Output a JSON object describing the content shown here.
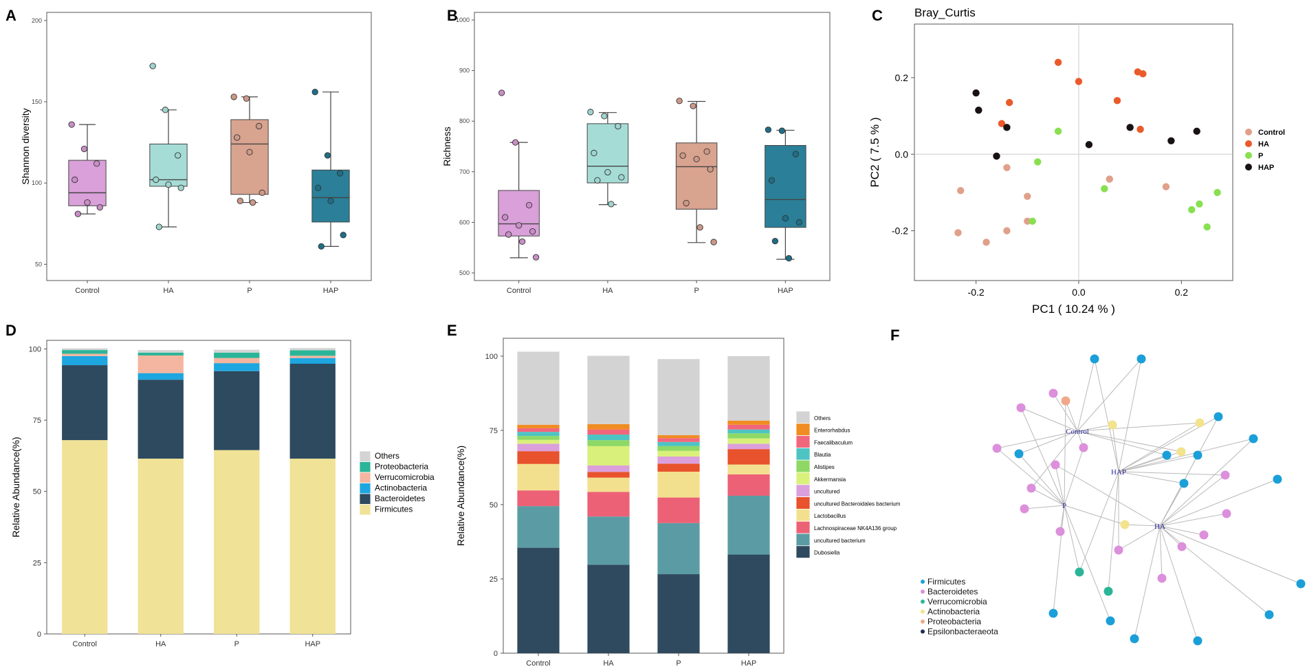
{
  "panels": {
    "A": "A",
    "B": "B",
    "C": "C",
    "D": "D",
    "E": "E",
    "F": "F"
  },
  "colors": {
    "Control": "#d9a0d9",
    "HA": "#a6dcd6",
    "P": "#d8a38f",
    "HAP": "#2b7f98",
    "Control_pt": "#c98ec6",
    "HA_pt": "#9ed4cd",
    "P_pt": "#cc9988",
    "HAP_pt": "#1f6e86"
  },
  "chart_data": [
    {
      "id": "A",
      "type": "box",
      "ylabel": "Shannon diversity",
      "xlabel": "",
      "categories": [
        "Control",
        "HA",
        "P",
        "HAP"
      ],
      "ylim": [
        40,
        205
      ],
      "yticks": [
        50,
        100,
        150,
        200
      ],
      "boxes": [
        {
          "group": "Control",
          "min": 81,
          "q1": 86,
          "median": 94,
          "q3": 114,
          "max": 136
        },
        {
          "group": "HA",
          "min": 73,
          "q1": 98,
          "median": 102,
          "q3": 124,
          "max": 145
        },
        {
          "group": "P",
          "min": 88,
          "q1": 93,
          "median": 124,
          "q3": 139,
          "max": 153
        },
        {
          "group": "HAP",
          "min": 61,
          "q1": 76,
          "median": 91,
          "q3": 108,
          "max": 156
        }
      ],
      "points": [
        {
          "group": "Control",
          "values": [
            136,
            121,
            112,
            102,
            88,
            85,
            81
          ]
        },
        {
          "group": "HA",
          "values": [
            172,
            145,
            117,
            102,
            99,
            97,
            73
          ]
        },
        {
          "group": "P",
          "values": [
            153,
            152,
            135,
            128,
            119,
            94,
            89,
            88
          ]
        },
        {
          "group": "HAP",
          "values": [
            156,
            117,
            106,
            97,
            89,
            68,
            61
          ]
        }
      ]
    },
    {
      "id": "B",
      "type": "box",
      "ylabel": "Richness",
      "xlabel": "",
      "categories": [
        "Control",
        "HA",
        "P",
        "HAP"
      ],
      "ylim": [
        485,
        1015
      ],
      "yticks": [
        500,
        600,
        700,
        800,
        900,
        1000
      ],
      "boxes": [
        {
          "group": "Control",
          "min": 530,
          "q1": 573,
          "median": 597,
          "q3": 663,
          "max": 758
        },
        {
          "group": "HA",
          "min": 635,
          "q1": 678,
          "median": 711,
          "q3": 795,
          "max": 817
        },
        {
          "group": "P",
          "min": 560,
          "q1": 626,
          "median": 710,
          "q3": 757,
          "max": 839
        },
        {
          "group": "HAP",
          "min": 527,
          "q1": 590,
          "median": 645,
          "q3": 752,
          "max": 782
        }
      ],
      "points": [
        {
          "group": "Control",
          "values": [
            856,
            758,
            634,
            610,
            594,
            582,
            576,
            562,
            531
          ]
        },
        {
          "group": "HA",
          "values": [
            818,
            810,
            790,
            737,
            699,
            689,
            683,
            636
          ]
        },
        {
          "group": "P",
          "values": [
            840,
            830,
            740,
            732,
            725,
            705,
            638,
            590,
            561
          ]
        },
        {
          "group": "HAP",
          "values": [
            783,
            781,
            735,
            683,
            608,
            600,
            563,
            529
          ]
        }
      ]
    },
    {
      "id": "C",
      "type": "scatter",
      "title": "Bray_Curtis",
      "xlabel": "PC1 ( 10.24 % )",
      "ylabel": "PC2 ( 7.5 % )",
      "xlim": [
        -0.32,
        0.3
      ],
      "ylim": [
        -0.33,
        0.34
      ],
      "xticks": [
        -0.2,
        0.0,
        0.2
      ],
      "xtick_labels": [
        "-0.2",
        "0.0",
        "0.2"
      ],
      "yticks": [
        -0.2,
        0.0,
        0.2
      ],
      "ytick_labels": [
        "-0.2",
        "0.0",
        "0.2"
      ],
      "series": [
        {
          "name": "Control",
          "color": "#e0a08a",
          "points": [
            [
              -0.23,
              -0.095
            ],
            [
              -0.235,
              -0.205
            ],
            [
              -0.18,
              -0.23
            ],
            [
              -0.14,
              -0.2
            ],
            [
              -0.14,
              -0.035
            ],
            [
              -0.1,
              -0.11
            ],
            [
              -0.1,
              -0.175
            ],
            [
              0.06,
              -0.065
            ],
            [
              0.17,
              -0.085
            ]
          ]
        },
        {
          "name": "HA",
          "color": "#ea5a2a",
          "points": [
            [
              -0.04,
              0.24
            ],
            [
              0.0,
              0.19
            ],
            [
              -0.135,
              0.135
            ],
            [
              -0.15,
              0.08
            ],
            [
              0.075,
              0.14
            ],
            [
              0.115,
              0.215
            ],
            [
              0.125,
              0.21
            ],
            [
              0.12,
              0.065
            ]
          ]
        },
        {
          "name": "P",
          "color": "#88e050",
          "points": [
            [
              -0.04,
              0.06
            ],
            [
              -0.08,
              -0.02
            ],
            [
              -0.09,
              -0.175
            ],
            [
              0.05,
              -0.09
            ],
            [
              0.22,
              -0.145
            ],
            [
              0.235,
              -0.13
            ],
            [
              0.25,
              -0.19
            ],
            [
              0.27,
              -0.1
            ]
          ]
        },
        {
          "name": "HAP",
          "color": "#1a1212",
          "points": [
            [
              -0.2,
              0.16
            ],
            [
              -0.195,
              0.115
            ],
            [
              -0.14,
              0.07
            ],
            [
              -0.16,
              -0.005
            ],
            [
              0.02,
              0.025
            ],
            [
              0.1,
              0.07
            ],
            [
              0.18,
              0.035
            ],
            [
              0.23,
              0.06
            ]
          ]
        }
      ]
    },
    {
      "id": "D",
      "type": "stacked-bar",
      "ylabel": "Relative Abundance(%)",
      "xlabel": "",
      "categories": [
        "Control",
        "HA",
        "P",
        "HAP"
      ],
      "ylim": [
        0,
        103
      ],
      "yticks": [
        0,
        25,
        50,
        75,
        100
      ],
      "series": [
        {
          "name": "Firmicutes",
          "color": "#f0e296",
          "values": [
            68,
            61.5,
            64.5,
            61.5
          ]
        },
        {
          "name": "Bacteroidetes",
          "color": "#2d4a5f",
          "values": [
            26.3,
            27.7,
            27.7,
            33.3
          ]
        },
        {
          "name": "Actinobacteria",
          "color": "#1ea6e0",
          "values": [
            3.2,
            2.3,
            2.8,
            2.0
          ]
        },
        {
          "name": "Verrucomicrobia",
          "color": "#f4b6a0",
          "values": [
            0.8,
            6.2,
            1.8,
            0.8
          ]
        },
        {
          "name": "Proteobacteria",
          "color": "#2bb598",
          "values": [
            1.3,
            1.0,
            1.9,
            1.9
          ]
        },
        {
          "name": "Others",
          "color": "#d4d4d4",
          "values": [
            0.6,
            0.9,
            1.0,
            0.8
          ]
        }
      ],
      "legend": [
        "Others",
        "Proteobacteria",
        "Verrucomicrobia",
        "Actinobacteria",
        "Bacteroidetes",
        "Firmicutes"
      ]
    },
    {
      "id": "E",
      "type": "stacked-bar",
      "ylabel": "Relative Abundance(%)",
      "xlabel": "",
      "categories": [
        "Control",
        "HA",
        "P",
        "HAP"
      ],
      "ylim": [
        0,
        106
      ],
      "yticks": [
        0,
        25,
        50,
        75,
        100
      ],
      "series": [
        {
          "name": "Dubosiella",
          "color": "#2f4a5e",
          "values": [
            35.5,
            29.8,
            26.6,
            33.2
          ]
        },
        {
          "name": "uncultured bacterium",
          "color": "#5b9ca4",
          "values": [
            14,
            16.2,
            17.2,
            19.8
          ]
        },
        {
          "name": "Lachnospiraceae NK4A136 group",
          "color": "#ec6176",
          "values": [
            5.3,
            8.3,
            8.6,
            7.2
          ]
        },
        {
          "name": "Lactobacillus",
          "color": "#f3e08f",
          "values": [
            8.9,
            4.8,
            8.7,
            3.3
          ]
        },
        {
          "name": "uncultured Bacteroidales bacterium",
          "color": "#e8522c",
          "values": [
            4.3,
            1.9,
            2.7,
            5.2
          ]
        },
        {
          "name": "uncultured",
          "color": "#dba0dc",
          "values": [
            2.5,
            2.2,
            2.4,
            1.8
          ]
        },
        {
          "name": "Akkermansia",
          "color": "#d9f07a",
          "values": [
            1.3,
            6.5,
            1.9,
            1.8
          ]
        },
        {
          "name": "Alistipes",
          "color": "#8ed865",
          "values": [
            1.3,
            2.0,
            1.6,
            1.7
          ]
        },
        {
          "name": "Blautia",
          "color": "#4ec4c2",
          "values": [
            1.4,
            1.9,
            1.4,
            1.3
          ]
        },
        {
          "name": "Faecalibaculum",
          "color": "#f2667c",
          "values": [
            1.2,
            1.7,
            1.3,
            1.6
          ]
        },
        {
          "name": "Enterorhabdus",
          "color": "#f08c22",
          "values": [
            1.2,
            1.8,
            1.0,
            1.4
          ]
        },
        {
          "name": "Others",
          "color": "#d3d3d3",
          "values": [
            24.6,
            23.0,
            25.6,
            21.7
          ]
        }
      ],
      "legend": [
        "Others",
        "Enterorhabdus",
        "Faecalibaculum",
        "Blautia",
        "Alistipes",
        "Akkermansia",
        "uncultured",
        "uncultured Bacteroidales bacterium",
        "Lactobacillus",
        "Lachnospiraceae NK4A136 group",
        "uncultured bacterium",
        "Dubosiella"
      ]
    }
  ],
  "network": {
    "hubs": [
      "Control",
      "HAP",
      "P",
      "HA"
    ],
    "legend": [
      {
        "name": "Firmicutes",
        "color": "#1b9fd8"
      },
      {
        "name": "Bacteroidetes",
        "color": "#dc8fdb"
      },
      {
        "name": "Verrucomicrobia",
        "color": "#2bb598"
      },
      {
        "name": "Actinobacteria",
        "color": "#f2e38c"
      },
      {
        "name": "Proteobacteria",
        "color": "#f1a888"
      },
      {
        "name": "Epsilonbacteraeota",
        "color": "#1c3050"
      }
    ]
  }
}
